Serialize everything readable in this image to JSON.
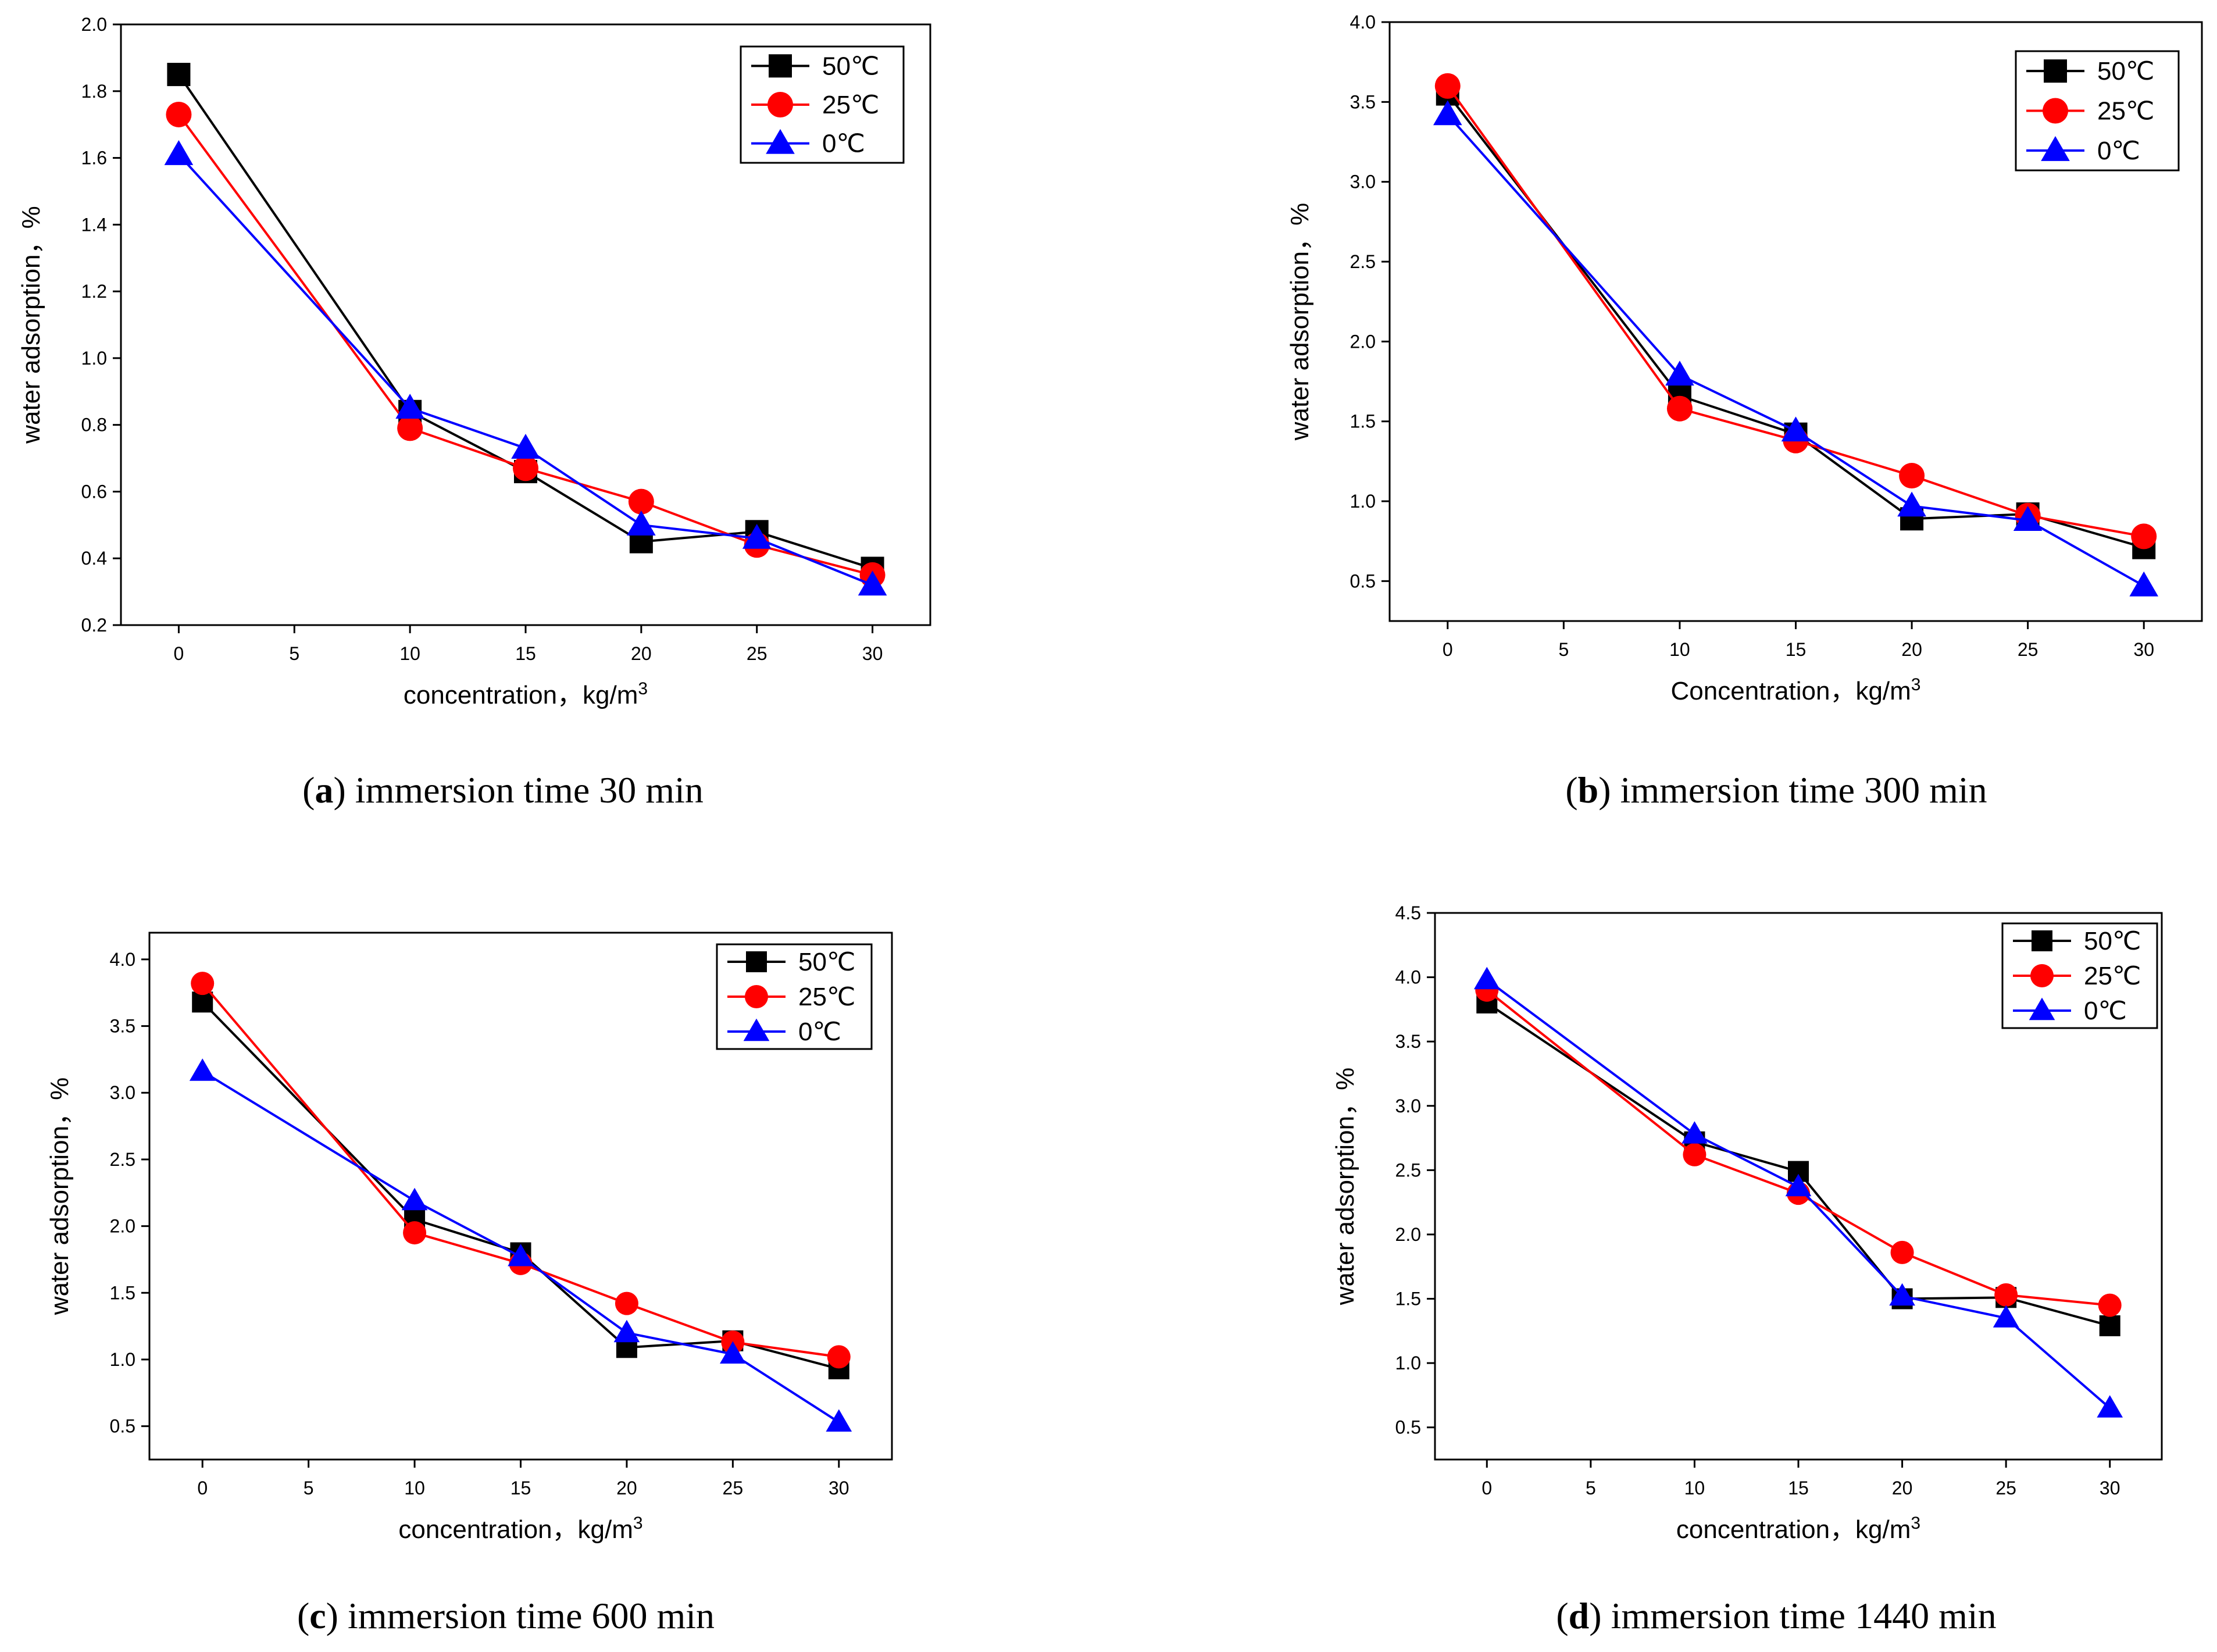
{
  "figure": {
    "colors": {
      "50": "#000000",
      "25": "#ff0000",
      "0": "#0000ff",
      "axis": "#000000"
    }
  },
  "chart_data": [
    {
      "type": "line",
      "caption": {
        "letter": "a",
        "text": "immersion time 30 min"
      },
      "xlabel": "concentration，kg/m",
      "xlabel_sup": "3",
      "ylabel": "water adsorption，%",
      "x": [
        0,
        10,
        15,
        20,
        25,
        30
      ],
      "xlim": [
        -2.5,
        32.5
      ],
      "xticks": [
        "0",
        "5",
        "10",
        "15",
        "20",
        "25",
        "30"
      ],
      "ylim": [
        0.2,
        2.0
      ],
      "yticks": [
        "0.2",
        "0.4",
        "0.6",
        "0.8",
        "1.0",
        "1.2",
        "1.4",
        "1.6",
        "1.8",
        "2.0"
      ],
      "legend_position": "top-right",
      "series": [
        {
          "name": "50℃",
          "marker": "square",
          "values": [
            1.85,
            0.84,
            0.66,
            0.45,
            0.48,
            0.37
          ]
        },
        {
          "name": "25℃",
          "marker": "circle",
          "values": [
            1.73,
            0.79,
            0.67,
            0.57,
            0.44,
            0.35
          ]
        },
        {
          "name": "0℃",
          "marker": "triangle",
          "values": [
            1.61,
            0.85,
            0.73,
            0.5,
            0.46,
            0.32
          ]
        }
      ]
    },
    {
      "type": "line",
      "caption": {
        "letter": "b",
        "text": "immersion time 300 min"
      },
      "xlabel": "Concentration，kg/m",
      "xlabel_sup": "3",
      "ylabel": "water adsorption，%",
      "x": [
        0,
        10,
        15,
        20,
        25,
        30
      ],
      "xlim": [
        -2.5,
        32.5
      ],
      "xticks": [
        "0",
        "5",
        "10",
        "15",
        "20",
        "25",
        "30"
      ],
      "ylim": [
        0.25,
        4.0
      ],
      "yticks": [
        "0.5",
        "1.0",
        "1.5",
        "2.0",
        "2.5",
        "3.0",
        "3.5",
        "4.0"
      ],
      "legend_position": "top-right",
      "series": [
        {
          "name": "50℃",
          "marker": "square",
          "values": [
            3.55,
            1.66,
            1.42,
            0.89,
            0.92,
            0.71
          ]
        },
        {
          "name": "25℃",
          "marker": "circle",
          "values": [
            3.6,
            1.58,
            1.38,
            1.16,
            0.91,
            0.78
          ]
        },
        {
          "name": "0℃",
          "marker": "triangle",
          "values": [
            3.42,
            1.79,
            1.44,
            0.97,
            0.88,
            0.47
          ]
        }
      ]
    },
    {
      "type": "line",
      "caption": {
        "letter": "c",
        "text": "immersion time 600 min"
      },
      "xlabel": "concentration，kg/m",
      "xlabel_sup": "3",
      "ylabel": "water adsorption，%",
      "x": [
        0,
        10,
        15,
        20,
        25,
        30
      ],
      "xlim": [
        -2.5,
        32.5
      ],
      "xticks": [
        "0",
        "5",
        "10",
        "15",
        "20",
        "25",
        "30"
      ],
      "ylim": [
        0.25,
        4.2
      ],
      "yticks": [
        "0.5",
        "1.0",
        "1.5",
        "2.0",
        "2.5",
        "3.0",
        "3.5",
        "4.0"
      ],
      "legend_position": "top-right",
      "series": [
        {
          "name": "50℃",
          "marker": "square",
          "values": [
            3.68,
            2.05,
            1.8,
            1.09,
            1.14,
            0.93
          ]
        },
        {
          "name": "25℃",
          "marker": "circle",
          "values": [
            3.82,
            1.95,
            1.72,
            1.42,
            1.13,
            1.02
          ]
        },
        {
          "name": "0℃",
          "marker": "triangle",
          "values": [
            3.16,
            2.19,
            1.77,
            1.2,
            1.04,
            0.53
          ]
        }
      ]
    },
    {
      "type": "line",
      "caption": {
        "letter": "d",
        "text": "immersion time 1440 min"
      },
      "xlabel": "concentration，kg/m",
      "xlabel_sup": "3",
      "ylabel": "water adsorption，%",
      "x": [
        0,
        10,
        15,
        20,
        25,
        30
      ],
      "xlim": [
        -2.5,
        32.5
      ],
      "xticks": [
        "0",
        "5",
        "10",
        "15",
        "20",
        "25",
        "30"
      ],
      "ylim": [
        0.25,
        4.5
      ],
      "yticks": [
        "0.5",
        "1.0",
        "1.5",
        "2.0",
        "2.5",
        "3.0",
        "3.5",
        "4.0",
        "4.5"
      ],
      "legend_position": "top-right",
      "series": [
        {
          "name": "50℃",
          "marker": "square",
          "values": [
            3.8,
            2.72,
            2.49,
            1.5,
            1.51,
            1.29
          ]
        },
        {
          "name": "25℃",
          "marker": "circle",
          "values": [
            3.9,
            2.62,
            2.32,
            1.86,
            1.53,
            1.45
          ]
        },
        {
          "name": "0℃",
          "marker": "triangle",
          "values": [
            3.98,
            2.78,
            2.37,
            1.52,
            1.35,
            0.65
          ]
        }
      ]
    }
  ]
}
